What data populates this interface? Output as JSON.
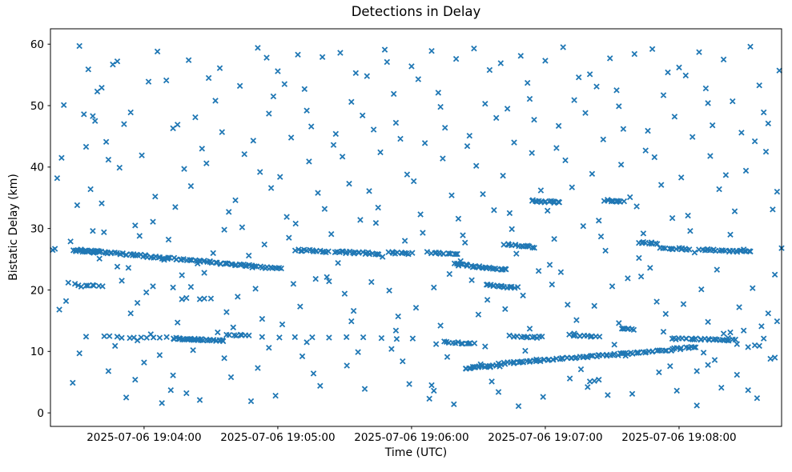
{
  "chart": {
    "title": "Detections in Delay",
    "xlabel": "Time (UTC)",
    "ylabel": "Bistatic Delay (km)"
  },
  "chart_data": {
    "type": "scatter",
    "title": "Detections in Delay",
    "xlabel": "Time (UTC)",
    "ylabel": "Bistatic Delay (km)",
    "marker": "x",
    "marker_color": "#1f77b4",
    "marker_half_px": 3.1,
    "background": "#ffffff",
    "grid": false,
    "legend": null,
    "x_axis_start": "2025-07-06 19:03:18",
    "x_axis_end": "2025-07-06 19:08:46",
    "xlim_seconds": [
      0,
      328
    ],
    "ylim": [
      -2.2,
      62.5
    ],
    "y_ticks": [
      0,
      10,
      20,
      30,
      40,
      50,
      60
    ],
    "x_ticks": [
      {
        "s": 42,
        "label": "2025-07-06 19:04:00"
      },
      {
        "s": 102,
        "label": "2025-07-06 19:05:00"
      },
      {
        "s": 162,
        "label": "2025-07-06 19:06:00"
      },
      {
        "s": 222,
        "label": "2025-07-06 19:07:00"
      },
      {
        "s": 282,
        "label": "2025-07-06 19:08:00"
      }
    ],
    "tracks_t0_d0_t1_d1_n": [
      [
        11,
        26.6,
        90,
        23.9,
        85
      ],
      [
        11,
        26.4,
        20,
        26.1,
        12
      ],
      [
        91,
        23.8,
        103,
        23.5,
        14
      ],
      [
        110,
        26.5,
        125,
        26.2,
        18
      ],
      [
        128,
        26.2,
        147,
        25.9,
        22
      ],
      [
        152,
        26.1,
        162,
        25.9,
        11
      ],
      [
        171,
        26.0,
        183,
        25.8,
        13
      ],
      [
        181,
        24.2,
        205,
        23.3,
        30
      ],
      [
        195,
        20.8,
        209,
        20.4,
        18
      ],
      [
        204,
        27.4,
        217,
        27.0,
        14
      ],
      [
        216,
        34.5,
        228,
        34.3,
        16
      ],
      [
        249,
        34.6,
        257,
        34.4,
        11
      ],
      [
        264,
        27.8,
        272,
        27.5,
        10
      ],
      [
        274,
        26.9,
        287,
        26.6,
        13
      ],
      [
        291,
        26.6,
        314,
        26.2,
        24
      ],
      [
        12,
        20.7,
        23,
        20.5,
        7
      ],
      [
        24,
        12.4,
        52,
        12.2,
        11
      ],
      [
        55,
        12.1,
        78,
        11.8,
        32
      ],
      [
        79,
        12.7,
        89,
        12.5,
        8
      ],
      [
        95,
        12.3,
        163,
        12.1,
        10
      ],
      [
        177,
        11.5,
        190,
        11.3,
        12
      ],
      [
        206,
        12.5,
        221,
        12.3,
        13
      ],
      [
        233,
        12.6,
        246,
        12.4,
        11
      ],
      [
        256,
        13.7,
        262,
        13.6,
        7
      ],
      [
        279,
        12.1,
        307,
        11.8,
        26
      ],
      [
        186,
        7.3,
        201,
        7.7,
        20
      ],
      [
        201,
        8.0,
        278,
        10.2,
        75
      ],
      [
        278,
        10.3,
        290,
        10.8,
        12
      ]
    ],
    "points_t_d": [
      [
        13,
        59.7
      ],
      [
        6,
        50.1
      ],
      [
        16,
        43.3
      ],
      [
        3,
        38.2
      ],
      [
        19,
        29.6
      ],
      [
        8,
        21.2
      ],
      [
        13,
        9.7
      ],
      [
        15,
        48.6
      ],
      [
        17,
        55.9
      ],
      [
        19,
        48.3
      ],
      [
        5,
        41.5
      ],
      [
        18,
        36.4
      ],
      [
        12,
        33.8
      ],
      [
        9,
        27.9
      ],
      [
        11,
        21.0
      ],
      [
        19,
        20.8
      ],
      [
        7,
        18.2
      ],
      [
        16,
        12.4
      ],
      [
        10,
        4.9
      ],
      [
        2,
        26.7
      ],
      [
        20,
        47.5
      ],
      [
        4,
        16.8
      ],
      [
        1,
        26.5
      ],
      [
        36,
        48.9
      ],
      [
        25,
        44.1
      ],
      [
        28,
        56.7
      ],
      [
        21,
        52.3
      ],
      [
        24,
        29.4
      ],
      [
        39,
        17.9
      ],
      [
        23,
        34.1
      ],
      [
        29,
        10.9
      ],
      [
        33,
        47.0
      ],
      [
        26,
        41.2
      ],
      [
        38,
        30.5
      ],
      [
        32,
        21.5
      ],
      [
        36,
        16.2
      ],
      [
        26,
        6.8
      ],
      [
        34,
        2.5
      ],
      [
        39,
        11.8
      ],
      [
        22,
        25.1
      ],
      [
        31,
        39.9
      ],
      [
        30,
        57.2
      ],
      [
        40,
        28.8
      ],
      [
        38,
        5.4
      ],
      [
        23,
        52.9
      ],
      [
        30,
        23.8
      ],
      [
        35,
        23.6
      ],
      [
        57,
        46.9
      ],
      [
        44,
        53.9
      ],
      [
        47,
        35.2
      ],
      [
        43,
        19.6
      ],
      [
        49,
        9.4
      ],
      [
        52,
        54.1
      ],
      [
        55,
        46.3
      ],
      [
        41,
        41.9
      ],
      [
        46,
        31.1
      ],
      [
        51,
        24.9
      ],
      [
        57,
        14.7
      ],
      [
        42,
        8.2
      ],
      [
        54,
        3.7
      ],
      [
        59,
        22.4
      ],
      [
        56,
        33.5
      ],
      [
        48,
        58.8
      ],
      [
        50,
        1.6
      ],
      [
        53,
        28.2
      ],
      [
        45,
        12.8
      ],
      [
        60,
        39.7
      ],
      [
        55,
        6.1
      ],
      [
        46,
        20.6
      ],
      [
        55,
        20.4
      ],
      [
        59,
        18.5
      ],
      [
        61,
        18.7
      ],
      [
        71,
        54.5
      ],
      [
        65,
        48.1
      ],
      [
        68,
        43.0
      ],
      [
        62,
        57.4
      ],
      [
        74,
        50.8
      ],
      [
        63,
        36.9
      ],
      [
        78,
        29.8
      ],
      [
        69,
        22.8
      ],
      [
        72,
        18.6
      ],
      [
        75,
        13.1
      ],
      [
        78,
        8.9
      ],
      [
        61,
        3.2
      ],
      [
        77,
        45.7
      ],
      [
        80,
        32.7
      ],
      [
        73,
        26.0
      ],
      [
        79,
        16.4
      ],
      [
        64,
        10.2
      ],
      [
        76,
        56.1
      ],
      [
        70,
        40.6
      ],
      [
        67,
        2.1
      ],
      [
        66,
        24.3
      ],
      [
        63,
        20.5
      ],
      [
        67,
        18.5
      ],
      [
        69,
        18.6
      ],
      [
        93,
        59.4
      ],
      [
        85,
        53.2
      ],
      [
        98,
        48.7
      ],
      [
        91,
        44.3
      ],
      [
        94,
        39.2
      ],
      [
        83,
        34.6
      ],
      [
        86,
        30.2
      ],
      [
        89,
        25.6
      ],
      [
        92,
        20.2
      ],
      [
        95,
        15.3
      ],
      [
        98,
        10.6
      ],
      [
        81,
        5.8
      ],
      [
        97,
        57.8
      ],
      [
        100,
        51.5
      ],
      [
        87,
        42.1
      ],
      [
        99,
        36.6
      ],
      [
        84,
        18.9
      ],
      [
        96,
        27.4
      ],
      [
        93,
        7.3
      ],
      [
        90,
        1.9
      ],
      [
        82,
        13.9
      ],
      [
        102,
        55.6
      ],
      [
        115,
        49.2
      ],
      [
        108,
        44.8
      ],
      [
        111,
        58.3
      ],
      [
        114,
        52.7
      ],
      [
        103,
        38.4
      ],
      [
        106,
        31.9
      ],
      [
        109,
        21.0
      ],
      [
        112,
        17.3
      ],
      [
        115,
        11.5
      ],
      [
        118,
        6.4
      ],
      [
        101,
        2.8
      ],
      [
        117,
        46.6
      ],
      [
        120,
        35.8
      ],
      [
        107,
        28.5
      ],
      [
        119,
        21.8
      ],
      [
        104,
        14.4
      ],
      [
        116,
        40.9
      ],
      [
        113,
        9.2
      ],
      [
        110,
        30.8
      ],
      [
        105,
        53.5
      ],
      [
        122,
        57.9
      ],
      [
        135,
        50.6
      ],
      [
        128,
        45.4
      ],
      [
        131,
        41.7
      ],
      [
        134,
        37.3
      ],
      [
        123,
        33.2
      ],
      [
        126,
        29.1
      ],
      [
        129,
        24.4
      ],
      [
        132,
        19.4
      ],
      [
        135,
        14.9
      ],
      [
        138,
        9.9
      ],
      [
        121,
        4.4
      ],
      [
        137,
        55.3
      ],
      [
        140,
        48.4
      ],
      [
        127,
        43.6
      ],
      [
        139,
        31.4
      ],
      [
        124,
        22.1
      ],
      [
        136,
        16.6
      ],
      [
        133,
        7.7
      ],
      [
        130,
        58.6
      ],
      [
        125,
        21.4
      ],
      [
        142,
        54.8
      ],
      [
        155,
        47.2
      ],
      [
        148,
        42.4
      ],
      [
        151,
        57.1
      ],
      [
        154,
        51.9
      ],
      [
        143,
        36.1
      ],
      [
        146,
        30.9
      ],
      [
        149,
        25.4
      ],
      [
        152,
        19.9
      ],
      [
        155,
        13.4
      ],
      [
        158,
        8.4
      ],
      [
        141,
        3.9
      ],
      [
        157,
        44.6
      ],
      [
        160,
        38.8
      ],
      [
        147,
        33.4
      ],
      [
        159,
        28.0
      ],
      [
        144,
        21.3
      ],
      [
        156,
        15.7
      ],
      [
        153,
        10.4
      ],
      [
        150,
        59.1
      ],
      [
        145,
        46.1
      ],
      [
        162,
        56.4
      ],
      [
        175,
        49.8
      ],
      [
        168,
        43.9
      ],
      [
        171,
        58.9
      ],
      [
        174,
        52.1
      ],
      [
        163,
        37.7
      ],
      [
        166,
        32.3
      ],
      [
        169,
        26.2
      ],
      [
        172,
        20.4
      ],
      [
        175,
        14.2
      ],
      [
        178,
        9.1
      ],
      [
        161,
        4.7
      ],
      [
        177,
        46.4
      ],
      [
        180,
        35.4
      ],
      [
        167,
        29.3
      ],
      [
        179,
        22.6
      ],
      [
        164,
        17.1
      ],
      [
        176,
        41.4
      ],
      [
        173,
        11.2
      ],
      [
        170,
        2.3
      ],
      [
        165,
        54.3
      ],
      [
        171,
        4.5
      ],
      [
        172,
        3.6
      ],
      [
        182,
        57.6
      ],
      [
        195,
        50.3
      ],
      [
        188,
        45.1
      ],
      [
        191,
        40.2
      ],
      [
        194,
        35.6
      ],
      [
        183,
        31.6
      ],
      [
        186,
        27.7
      ],
      [
        189,
        21.6
      ],
      [
        192,
        16.0
      ],
      [
        195,
        10.8
      ],
      [
        198,
        5.1
      ],
      [
        181,
        1.4
      ],
      [
        197,
        55.8
      ],
      [
        200,
        48.0
      ],
      [
        187,
        43.4
      ],
      [
        199,
        33.0
      ],
      [
        184,
        24.7
      ],
      [
        196,
        18.4
      ],
      [
        193,
        7.9
      ],
      [
        190,
        59.3
      ],
      [
        185,
        28.9
      ],
      [
        202,
        56.9
      ],
      [
        215,
        51.1
      ],
      [
        208,
        44.0
      ],
      [
        211,
        58.1
      ],
      [
        214,
        53.7
      ],
      [
        203,
        38.6
      ],
      [
        206,
        32.5
      ],
      [
        209,
        25.9
      ],
      [
        212,
        19.1
      ],
      [
        215,
        13.7
      ],
      [
        218,
        8.7
      ],
      [
        201,
        3.4
      ],
      [
        217,
        47.7
      ],
      [
        220,
        36.2
      ],
      [
        207,
        29.9
      ],
      [
        219,
        23.1
      ],
      [
        204,
        16.9
      ],
      [
        216,
        42.3
      ],
      [
        213,
        10.1
      ],
      [
        210,
        1.1
      ],
      [
        205,
        49.5
      ],
      [
        222,
        57.3
      ],
      [
        235,
        50.9
      ],
      [
        228,
        46.7
      ],
      [
        231,
        41.1
      ],
      [
        234,
        36.7
      ],
      [
        223,
        32.9
      ],
      [
        226,
        28.3
      ],
      [
        229,
        22.9
      ],
      [
        232,
        17.6
      ],
      [
        235,
        12.9
      ],
      [
        238,
        7.1
      ],
      [
        221,
        2.6
      ],
      [
        237,
        54.6
      ],
      [
        240,
        48.8
      ],
      [
        227,
        43.1
      ],
      [
        239,
        30.4
      ],
      [
        224,
        24.1
      ],
      [
        236,
        15.1
      ],
      [
        233,
        5.6
      ],
      [
        230,
        59.5
      ],
      [
        225,
        20.9
      ],
      [
        242,
        55.1
      ],
      [
        255,
        49.9
      ],
      [
        248,
        44.5
      ],
      [
        251,
        57.7
      ],
      [
        254,
        52.5
      ],
      [
        243,
        38.9
      ],
      [
        246,
        31.3
      ],
      [
        249,
        26.4
      ],
      [
        252,
        20.6
      ],
      [
        255,
        14.6
      ],
      [
        258,
        9.3
      ],
      [
        241,
        4.2
      ],
      [
        257,
        46.2
      ],
      [
        260,
        35.1
      ],
      [
        247,
        28.7
      ],
      [
        259,
        21.9
      ],
      [
        244,
        17.4
      ],
      [
        256,
        40.4
      ],
      [
        253,
        11.1
      ],
      [
        250,
        2.9
      ],
      [
        245,
        53.1
      ],
      [
        242,
        5.1
      ],
      [
        244,
        5.2
      ],
      [
        246,
        5.4
      ],
      [
        262,
        58.4
      ],
      [
        275,
        51.7
      ],
      [
        268,
        45.9
      ],
      [
        271,
        41.6
      ],
      [
        274,
        37.1
      ],
      [
        263,
        33.6
      ],
      [
        266,
        29.2
      ],
      [
        269,
        23.6
      ],
      [
        272,
        18.1
      ],
      [
        275,
        13.2
      ],
      [
        278,
        7.6
      ],
      [
        261,
        3.1
      ],
      [
        277,
        55.4
      ],
      [
        280,
        48.2
      ],
      [
        267,
        42.7
      ],
      [
        279,
        31.7
      ],
      [
        264,
        25.2
      ],
      [
        276,
        16.1
      ],
      [
        273,
        6.6
      ],
      [
        270,
        59.2
      ],
      [
        265,
        22.2
      ],
      [
        282,
        56.2
      ],
      [
        295,
        50.4
      ],
      [
        288,
        44.9
      ],
      [
        291,
        58.7
      ],
      [
        294,
        52.8
      ],
      [
        283,
        38.3
      ],
      [
        286,
        32.1
      ],
      [
        289,
        26.1
      ],
      [
        292,
        20.1
      ],
      [
        295,
        14.8
      ],
      [
        298,
        8.6
      ],
      [
        281,
        3.6
      ],
      [
        297,
        46.8
      ],
      [
        300,
        36.4
      ],
      [
        287,
        29.6
      ],
      [
        299,
        23.3
      ],
      [
        284,
        17.7
      ],
      [
        296,
        41.8
      ],
      [
        293,
        9.8
      ],
      [
        290,
        1.2
      ],
      [
        285,
        54.9
      ],
      [
        290,
        6.8
      ],
      [
        295,
        7.8
      ],
      [
        302,
        57.5
      ],
      [
        306,
        50.7
      ],
      [
        310,
        45.6
      ],
      [
        314,
        59.6
      ],
      [
        318,
        53.3
      ],
      [
        303,
        38.7
      ],
      [
        307,
        32.8
      ],
      [
        311,
        26.6
      ],
      [
        315,
        20.3
      ],
      [
        319,
        14.1
      ],
      [
        323,
        8.8
      ],
      [
        301,
        4.1
      ],
      [
        322,
        47.1
      ],
      [
        326,
        36.0
      ],
      [
        305,
        29.0
      ],
      [
        325,
        22.5
      ],
      [
        309,
        17.2
      ],
      [
        321,
        42.5
      ],
      [
        313,
        10.7
      ],
      [
        317,
        2.4
      ],
      [
        327,
        55.7
      ],
      [
        324,
        33.1
      ],
      [
        308,
        6.2
      ],
      [
        328,
        26.8
      ],
      [
        320,
        48.9
      ],
      [
        312,
        39.4
      ],
      [
        316,
        44.2
      ],
      [
        304,
        12.2
      ],
      [
        302,
        12.9
      ],
      [
        305,
        13.1
      ],
      [
        311,
        13.4
      ],
      [
        308,
        11.2
      ],
      [
        316,
        11.0
      ],
      [
        320,
        12.1
      ],
      [
        326,
        14.9
      ],
      [
        322,
        16.2
      ],
      [
        318,
        10.9
      ],
      [
        325,
        9.0
      ],
      [
        313,
        3.7
      ]
    ]
  }
}
